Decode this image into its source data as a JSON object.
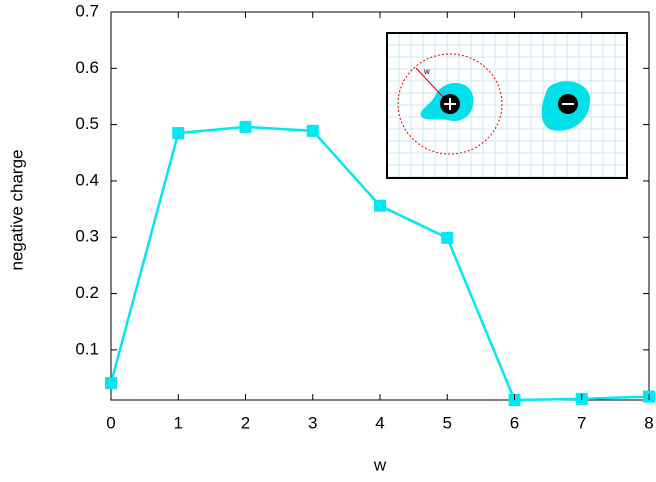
{
  "chart_data": {
    "type": "line",
    "x_label": "w",
    "y_label": "negative charge",
    "x": [
      0,
      1,
      2,
      3,
      4,
      5,
      6,
      7,
      8
    ],
    "series": [
      {
        "color": "#00e8f0",
        "values": [
          0.041,
          0.485,
          0.496,
          0.489,
          0.356,
          0.299,
          0.011,
          0.013,
          0.017
        ]
      }
    ],
    "xlim": [
      0,
      8
    ],
    "xticks": [
      0,
      1,
      2,
      3,
      4,
      5,
      6,
      7,
      8
    ],
    "ylim": [
      0.011,
      0.7
    ],
    "yticks": [
      0.1,
      0.2,
      0.3,
      0.4,
      0.5,
      0.6,
      0.7
    ],
    "inset": {
      "label": "w"
    }
  }
}
